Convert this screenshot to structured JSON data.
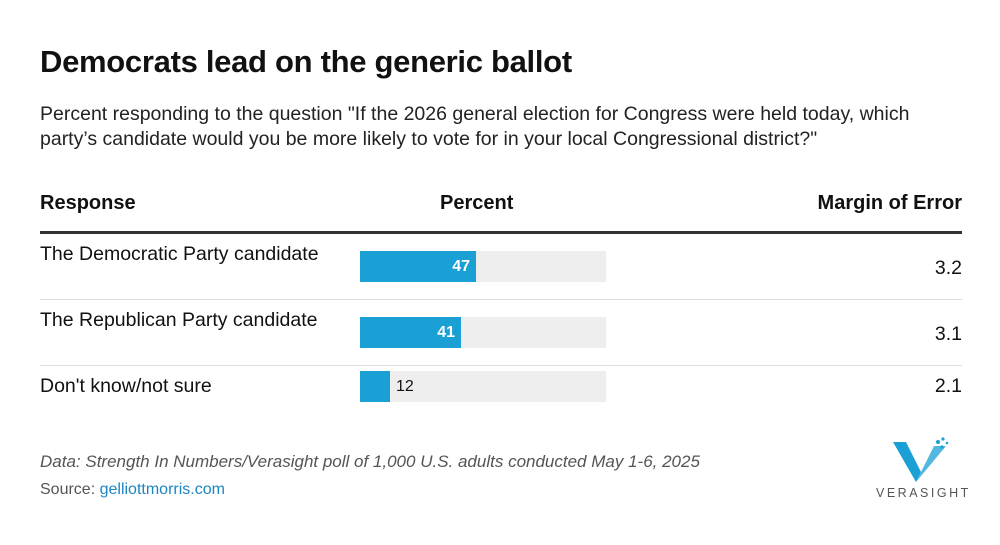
{
  "title": "Democrats lead on the generic ballot",
  "subtitle": "Percent responding to the question \"If the 2026 general election for Congress were held today, which party’s candidate would you be more likely to vote for in your local Congressional district?\"",
  "columns": {
    "response": "Response",
    "percent": "Percent",
    "moe": "Margin of Error"
  },
  "chart_data": {
    "type": "table",
    "columns": [
      "Response",
      "Percent",
      "Margin of Error"
    ],
    "rows": [
      {
        "response": "The Democratic Party candidate",
        "percent": 47,
        "margin_of_error": "3.2"
      },
      {
        "response": "The Republican Party candidate",
        "percent": 41,
        "margin_of_error": "3.1"
      },
      {
        "response": "Don't know/not sure",
        "percent": 12,
        "margin_of_error": "2.1"
      }
    ],
    "bar_scale_max": 100,
    "bar_color": "#1aa0d4",
    "track_color": "#eeeeee"
  },
  "footer": {
    "note": "Data: Strength In Numbers/Verasight poll of 1,000 U.S. adults conducted May 1-6, 2025",
    "source_prefix": "Source: ",
    "source_link": "gelliottmorris.com"
  },
  "logo": {
    "wordmark": "VERASIGHT",
    "icon": "verasight-v-logo-icon",
    "color": "#1aa0d4"
  }
}
